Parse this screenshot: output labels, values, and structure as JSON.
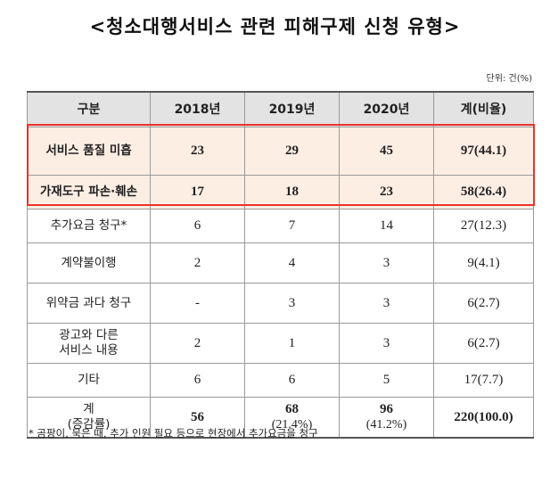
{
  "title": "<청소대행서비스 관련 피해구제 신청 유형>",
  "unit": "단위: 건(%)",
  "table": {
    "headers": [
      "구분",
      "2018년",
      "2019년",
      "2020년",
      "계(비율)"
    ],
    "rows": [
      {
        "label": "서비스 품질 미흡",
        "y2018": "23",
        "y2019": "29",
        "y2020": "45",
        "total": "97(44.1)"
      },
      {
        "label": "가재도구 파손·훼손",
        "y2018": "17",
        "y2019": "18",
        "y2020": "23",
        "total": "58(26.4)"
      },
      {
        "label": "추가요금 청구*",
        "y2018": "6",
        "y2019": "7",
        "y2020": "14",
        "total": "27(12.3)"
      },
      {
        "label": "계약불이행",
        "y2018": "2",
        "y2019": "4",
        "y2020": "3",
        "total": "9(4.1)"
      },
      {
        "label": "위약금 과다 청구",
        "y2018": "-",
        "y2019": "3",
        "y2020": "3",
        "total": "6(2.7)"
      },
      {
        "label_line1": "광고와 다른",
        "label_line2": "서비스 내용",
        "y2018": "2",
        "y2019": "1",
        "y2020": "3",
        "total": "6(2.7)"
      },
      {
        "label": "기타",
        "y2018": "6",
        "y2019": "6",
        "y2020": "5",
        "total": "17(7.7)"
      }
    ],
    "total_row": {
      "label_line1": "계",
      "label_line2": "(증감률)",
      "y2018": "56",
      "y2019": "68",
      "y2019_rate": "(21.4%)",
      "y2020": "96",
      "y2020_rate": "(41.2%)",
      "total": "220(100.0)"
    }
  },
  "highlight_color": "#e8332b",
  "highlight_fill": "#fdeee4",
  "footnote": "* 곰팡이, 묵은 때, 추가 인원 필요 등으로 현장에서 추가요금을 청구"
}
